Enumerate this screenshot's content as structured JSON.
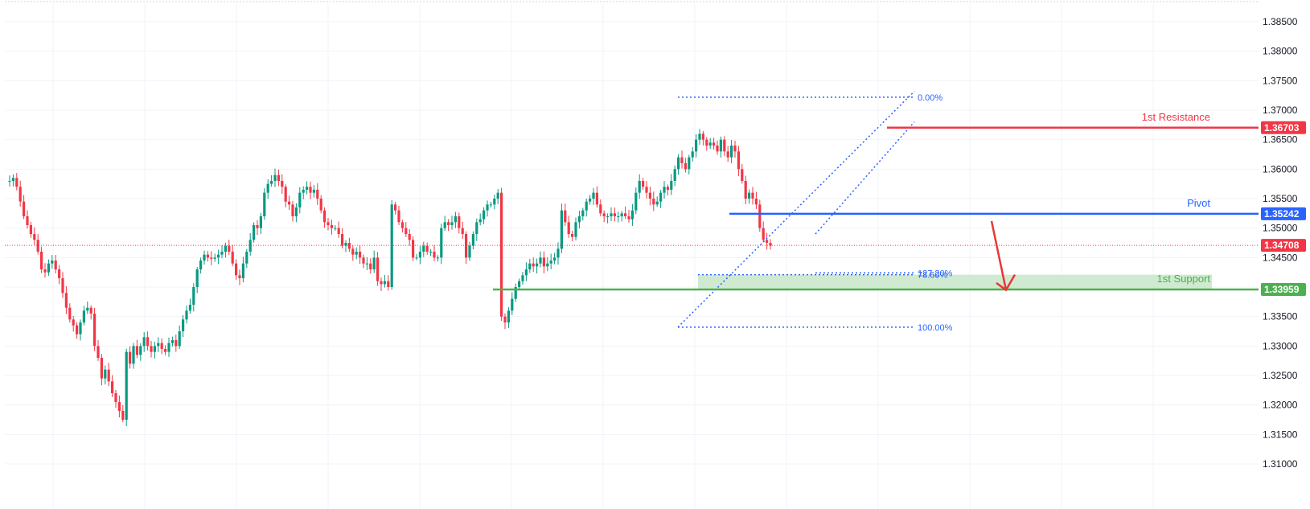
{
  "colors": {
    "up": "#089981",
    "down": "#f23645",
    "resistance": "#f23645",
    "pivot": "#2962ff",
    "support": "#4caf50",
    "support_zone": "#c8e6c9",
    "fib": "#2962ff",
    "current_price": "#f23645",
    "grid": "#f0f3fa",
    "axis_text": "#131722"
  },
  "chart_data": {
    "type": "candlestick",
    "y_axis": {
      "position": "right",
      "range": [
        1.307,
        1.3888
      ],
      "ticks": [
        "1.38500",
        "1.38000",
        "1.37500",
        "1.37000",
        "1.36500",
        "1.36000",
        "1.35500",
        "1.35000",
        "1.34500",
        "1.34000",
        "1.33500",
        "1.33000",
        "1.32500",
        "1.32000",
        "1.31500",
        "1.31000"
      ]
    },
    "grid": true,
    "levels": [
      {
        "name": "1st Resistance",
        "price": 1.36703,
        "badge": "1.36703",
        "color": "#f23645"
      },
      {
        "name": "Pivot",
        "price": 1.35242,
        "badge": "1.35242",
        "color": "#2962ff"
      },
      {
        "name": "1st Support",
        "price": 1.33959,
        "badge": "1.33959",
        "color": "#4caf50"
      }
    ],
    "current_price": {
      "value": 1.34708,
      "badge": "1.34708"
    },
    "fibonacci": [
      {
        "label": "0.00%",
        "price": 1.3722
      },
      {
        "label": "78.60%",
        "price": 1.3421
      },
      {
        "label": "127.20%",
        "price": 1.3424
      },
      {
        "label": "100.00%",
        "price": 1.3332
      }
    ],
    "closes": [
      1.358,
      1.3585,
      1.357,
      1.3545,
      1.352,
      1.3505,
      1.349,
      1.348,
      1.346,
      1.343,
      1.3425,
      1.344,
      1.3445,
      1.343,
      1.3415,
      1.339,
      1.3365,
      1.3345,
      1.3335,
      1.332,
      1.334,
      1.336,
      1.3365,
      1.3355,
      1.33,
      1.328,
      1.3245,
      1.326,
      1.324,
      1.322,
      1.3205,
      1.319,
      1.3175,
      1.329,
      1.327,
      1.33,
      1.3285,
      1.33,
      1.3315,
      1.33,
      1.329,
      1.33,
      1.3305,
      1.3295,
      1.329,
      1.3305,
      1.331,
      1.33,
      1.3325,
      1.3345,
      1.336,
      1.337,
      1.34,
      1.343,
      1.3445,
      1.3455,
      1.345,
      1.3448,
      1.345,
      1.3455,
      1.346,
      1.347,
      1.346,
      1.344,
      1.342,
      1.3415,
      1.344,
      1.346,
      1.348,
      1.3505,
      1.35,
      1.352,
      1.356,
      1.3575,
      1.358,
      1.359,
      1.358,
      1.357,
      1.3545,
      1.354,
      1.352,
      1.3535,
      1.356,
      1.3565,
      1.357,
      1.356,
      1.3565,
      1.355,
      1.353,
      1.351,
      1.3505,
      1.35,
      1.35,
      1.349,
      1.347,
      1.3475,
      1.3465,
      1.3455,
      1.346,
      1.345,
      1.344,
      1.344,
      1.343,
      1.345,
      1.341,
      1.3405,
      1.341,
      1.34,
      1.354,
      1.353,
      1.351,
      1.35,
      1.349,
      1.348,
      1.345,
      1.345,
      1.346,
      1.347,
      1.346,
      1.346,
      1.345,
      1.345,
      1.35,
      1.351,
      1.3505,
      1.351,
      1.352,
      1.35,
      1.349,
      1.345,
      1.347,
      1.349,
      1.351,
      1.3515,
      1.353,
      1.354,
      1.354,
      1.355,
      1.356,
      1.335,
      1.334,
      1.336,
      1.338,
      1.34,
      1.341,
      1.342,
      1.343,
      1.344,
      1.3435,
      1.344,
      1.345,
      1.3435,
      1.344,
      1.3445,
      1.345,
      1.3465,
      1.353,
      1.351,
      1.349,
      1.3485,
      1.351,
      1.352,
      1.353,
      1.3545,
      1.355,
      1.356,
      1.354,
      1.3525,
      1.352,
      1.352,
      1.3525,
      1.352,
      1.352,
      1.3525,
      1.352,
      1.3515,
      1.353,
      1.356,
      1.358,
      1.357,
      1.356,
      1.355,
      1.354,
      1.3545,
      1.356,
      1.357,
      1.3565,
      1.358,
      1.36,
      1.362,
      1.361,
      1.36,
      1.362,
      1.363,
      1.365,
      1.366,
      1.365,
      1.364,
      1.3645,
      1.364,
      1.363,
      1.365,
      1.363,
      1.362,
      1.364,
      1.363,
      1.36,
      1.358,
      1.355,
      1.356,
      1.355,
      1.354,
      1.35,
      1.348,
      1.3475,
      1.347
    ]
  }
}
